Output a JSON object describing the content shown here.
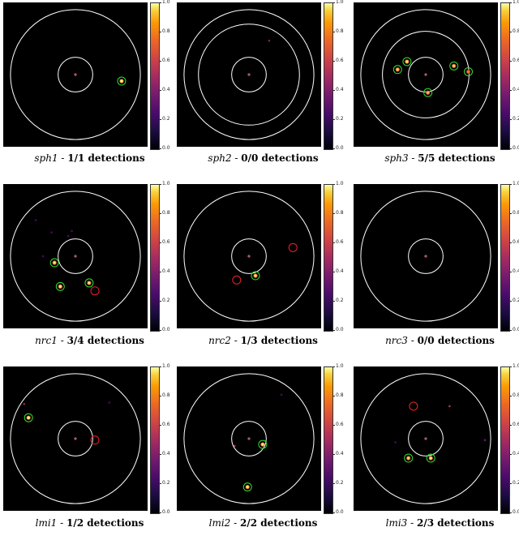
{
  "chart_data": {
    "type": "scatter",
    "colorbar_ticks": [
      "1.0",
      "0.8",
      "0.6",
      "0.4",
      "0.2",
      "0.0"
    ],
    "panels": [
      {
        "name": "sph1",
        "sep": " - ",
        "count": "1/1",
        "suffix": " detections",
        "circles": [
          0.12,
          0.45
        ],
        "sources": [
          {
            "x": 0.64,
            "y": 0.09,
            "i": 1.0,
            "det": "green"
          }
        ],
        "faint": []
      },
      {
        "name": "sph2",
        "sep": " - ",
        "count": "0/0",
        "suffix": " detections",
        "circles": [
          0.12,
          0.35,
          0.45
        ],
        "sources": [],
        "faint": [
          {
            "x": 0.28,
            "y": -0.47,
            "i": 0.35
          }
        ]
      },
      {
        "name": "sph3",
        "sep": " - ",
        "count": "5/5",
        "suffix": " detections",
        "circles": [
          0.12,
          0.3,
          0.45
        ],
        "sources": [
          {
            "x": -0.39,
            "y": -0.07,
            "i": 0.9,
            "det": "green"
          },
          {
            "x": -0.26,
            "y": -0.18,
            "i": 0.95,
            "det": "green"
          },
          {
            "x": 0.39,
            "y": -0.12,
            "i": 0.9,
            "det": "green"
          },
          {
            "x": 0.59,
            "y": -0.04,
            "i": 0.7,
            "det": "green"
          },
          {
            "x": 0.03,
            "y": 0.25,
            "i": 0.85,
            "det": "green"
          }
        ],
        "faint": []
      },
      {
        "name": "nrc1",
        "sep": " - ",
        "count": "3/4",
        "suffix": " detections",
        "circles": [
          0.12,
          0.45
        ],
        "sources": [
          {
            "x": -0.29,
            "y": 0.09,
            "i": 0.95,
            "det": "green"
          },
          {
            "x": -0.21,
            "y": 0.42,
            "i": 0.95,
            "det": "green"
          },
          {
            "x": 0.19,
            "y": 0.37,
            "i": 0.95,
            "det": "green"
          },
          {
            "x": 0.27,
            "y": 0.48,
            "i": 0.0,
            "det": "red"
          }
        ],
        "faint": [
          {
            "x": -0.33,
            "y": -0.33,
            "i": 0.2
          },
          {
            "x": -0.05,
            "y": -0.35,
            "i": 0.2
          },
          {
            "x": -0.1,
            "y": -0.28,
            "i": 0.2
          },
          {
            "x": -0.55,
            "y": -0.5,
            "i": 0.2
          },
          {
            "x": -0.45,
            "y": 0.0,
            "i": 0.2
          }
        ]
      },
      {
        "name": "nrc2",
        "sep": " - ",
        "count": "1/3",
        "suffix": " detections",
        "circles": [
          0.12,
          0.45
        ],
        "sources": [
          {
            "x": 0.09,
            "y": 0.27,
            "i": 0.95,
            "det": "green"
          },
          {
            "x": -0.17,
            "y": 0.33,
            "i": 0.0,
            "det": "red"
          },
          {
            "x": 0.61,
            "y": -0.12,
            "i": 0.0,
            "det": "red"
          }
        ],
        "faint": []
      },
      {
        "name": "nrc3",
        "sep": " - ",
        "count": "0/0",
        "suffix": " detections",
        "circles": [
          0.12,
          0.45
        ],
        "sources": [],
        "faint": []
      },
      {
        "name": "lmi1",
        "sep": " - ",
        "count": "1/2",
        "suffix": " detections",
        "circles": [
          0.12,
          0.45
        ],
        "sources": [
          {
            "x": -0.65,
            "y": -0.29,
            "i": 1.0,
            "det": "green"
          },
          {
            "x": 0.27,
            "y": 0.02,
            "i": 0.0,
            "det": "red"
          }
        ],
        "faint": [
          {
            "x": -0.71,
            "y": -0.48,
            "i": 0.4
          },
          {
            "x": 0.47,
            "y": -0.5,
            "i": 0.2
          }
        ]
      },
      {
        "name": "lmi2",
        "sep": " - ",
        "count": "2/2",
        "suffix": " detections",
        "circles": [
          0.12,
          0.45
        ],
        "sources": [
          {
            "x": 0.19,
            "y": 0.08,
            "i": 0.95,
            "det": "green"
          },
          {
            "x": -0.02,
            "y": 0.67,
            "i": 0.95,
            "det": "green"
          }
        ],
        "faint": [
          {
            "x": -0.2,
            "y": 0.1,
            "i": 0.5
          },
          {
            "x": 0.45,
            "y": -0.61,
            "i": 0.2
          }
        ]
      },
      {
        "name": "lmi3",
        "sep": " - ",
        "count": "2/3",
        "suffix": " detections",
        "circles": [
          0.12,
          0.45
        ],
        "sources": [
          {
            "x": -0.24,
            "y": 0.27,
            "i": 0.9,
            "det": "green"
          },
          {
            "x": 0.07,
            "y": 0.27,
            "i": 0.95,
            "det": "green"
          },
          {
            "x": -0.17,
            "y": -0.45,
            "i": 0.0,
            "det": "red"
          }
        ],
        "faint": [
          {
            "x": 0.33,
            "y": -0.45,
            "i": 0.45
          },
          {
            "x": 0.82,
            "y": 0.02,
            "i": 0.3
          },
          {
            "x": -0.42,
            "y": 0.05,
            "i": 0.2
          }
        ]
      }
    ]
  },
  "colors": {
    "ring": "#ffffff",
    "center": "#ff8aa0",
    "green": "#33dd33",
    "red": "#ee2222",
    "background": "#000000"
  }
}
